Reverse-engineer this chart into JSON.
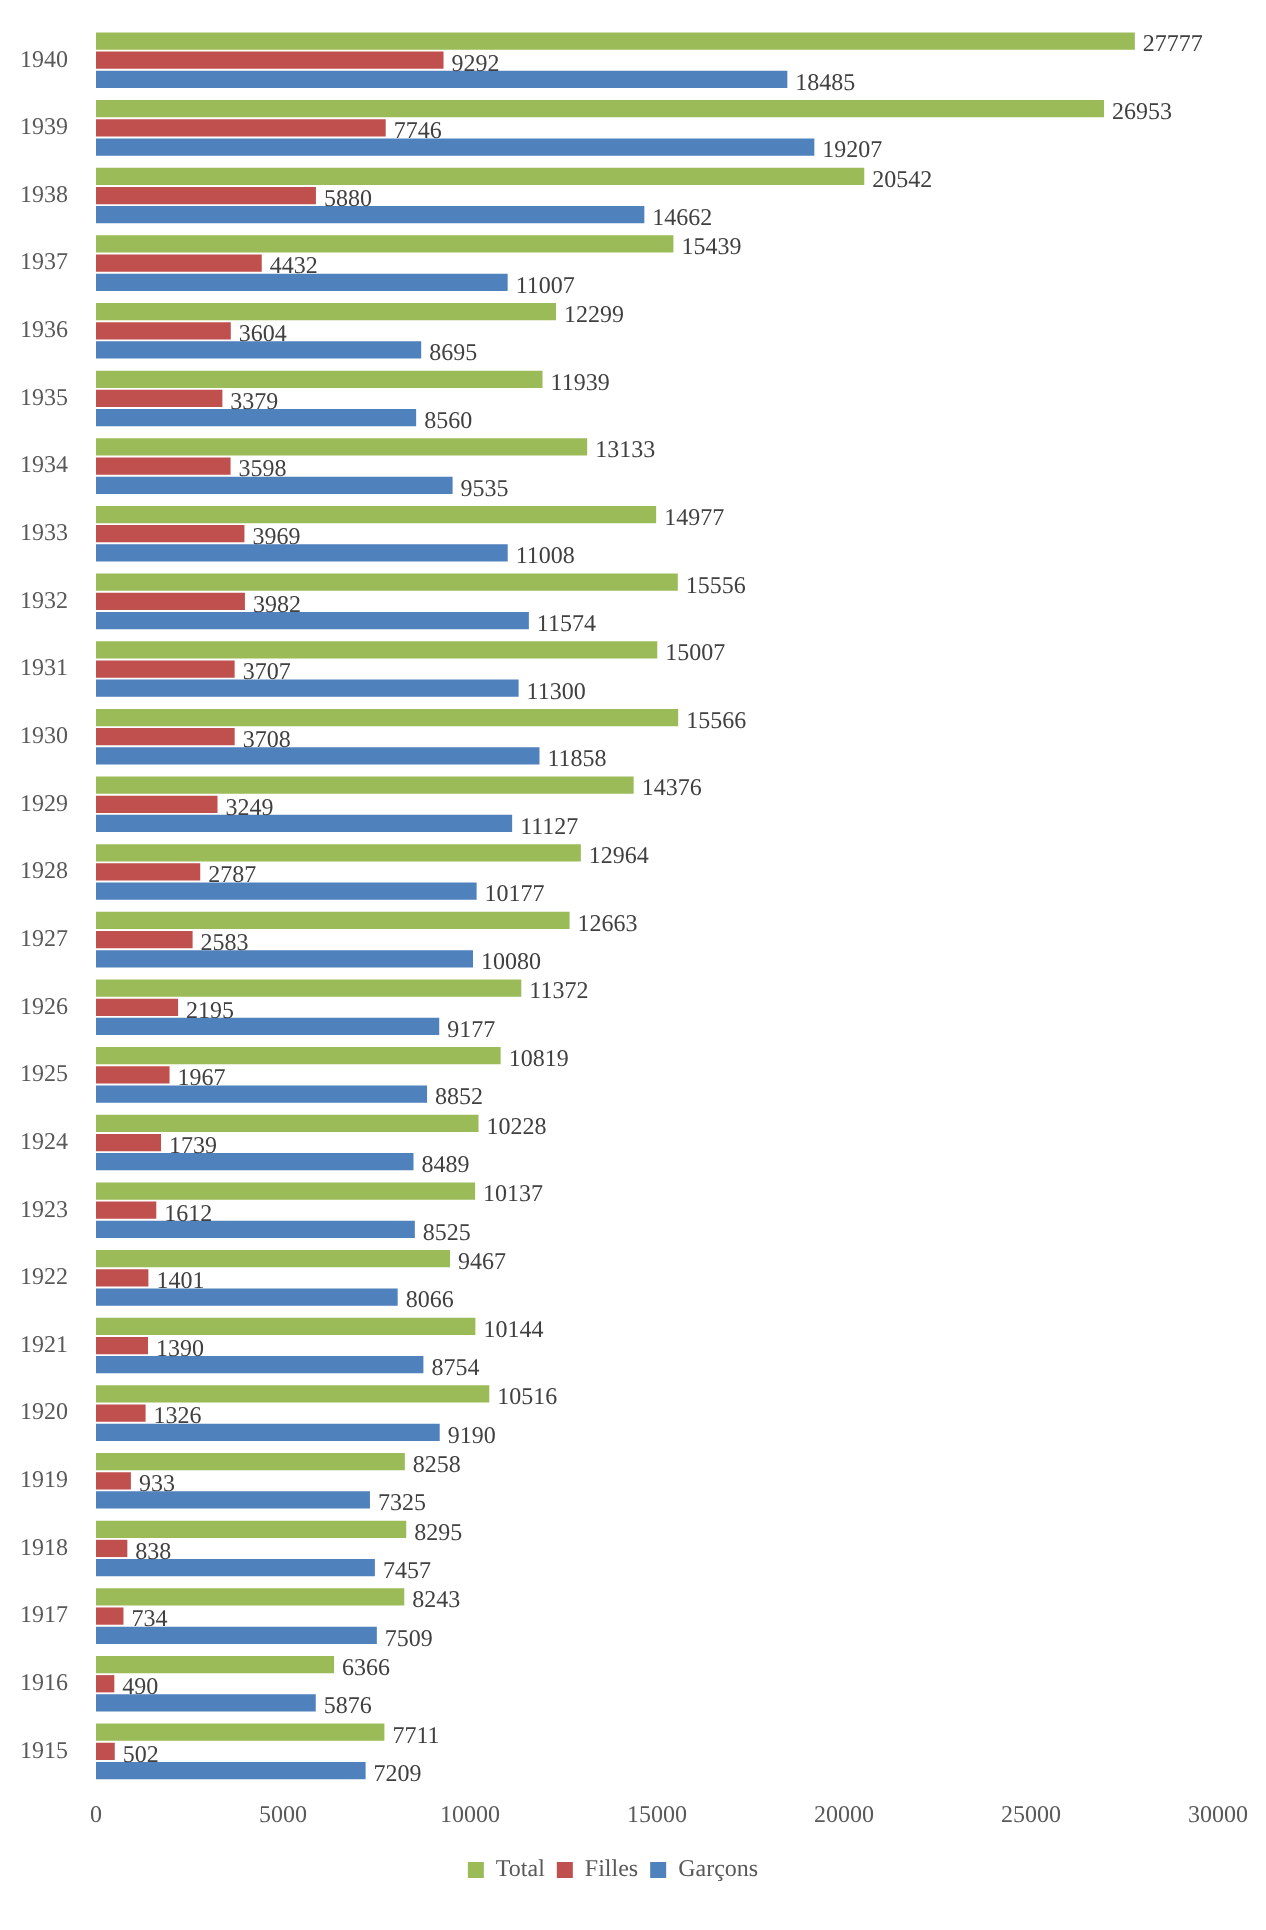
{
  "chart_data": {
    "type": "bar",
    "orientation": "horizontal",
    "categories": [
      "1940",
      "1939",
      "1938",
      "1937",
      "1936",
      "1935",
      "1934",
      "1933",
      "1932",
      "1931",
      "1930",
      "1929",
      "1928",
      "1927",
      "1926",
      "1925",
      "1924",
      "1923",
      "1922",
      "1921",
      "1920",
      "1919",
      "1918",
      "1917",
      "1916",
      "1915"
    ],
    "series": [
      {
        "name": "Total",
        "color": "#9bbb59",
        "values": [
          27777,
          26953,
          20542,
          15439,
          12299,
          11939,
          13133,
          14977,
          15556,
          15007,
          15566,
          14376,
          12964,
          12663,
          11372,
          10819,
          10228,
          10137,
          9467,
          10144,
          10516,
          8258,
          8295,
          8243,
          6366,
          7711
        ]
      },
      {
        "name": "Filles",
        "color": "#c0504d",
        "values": [
          9292,
          7746,
          5880,
          4432,
          3604,
          3379,
          3598,
          3969,
          3982,
          3707,
          3708,
          3249,
          2787,
          2583,
          2195,
          1967,
          1739,
          1612,
          1401,
          1390,
          1326,
          933,
          838,
          734,
          490,
          502
        ]
      },
      {
        "name": "Garçons",
        "color": "#4f81bd",
        "values": [
          18485,
          19207,
          14662,
          11007,
          8695,
          8560,
          9535,
          11008,
          11574,
          11300,
          11858,
          11127,
          10177,
          10080,
          9177,
          8852,
          8489,
          8525,
          8066,
          8754,
          9190,
          7325,
          7457,
          7509,
          5876,
          7209
        ]
      }
    ],
    "xlim": [
      0,
      30000
    ],
    "xticks": [
      0,
      5000,
      10000,
      15000,
      20000,
      25000,
      30000
    ],
    "grid": false,
    "legend": "bottom",
    "data_labels": true
  }
}
